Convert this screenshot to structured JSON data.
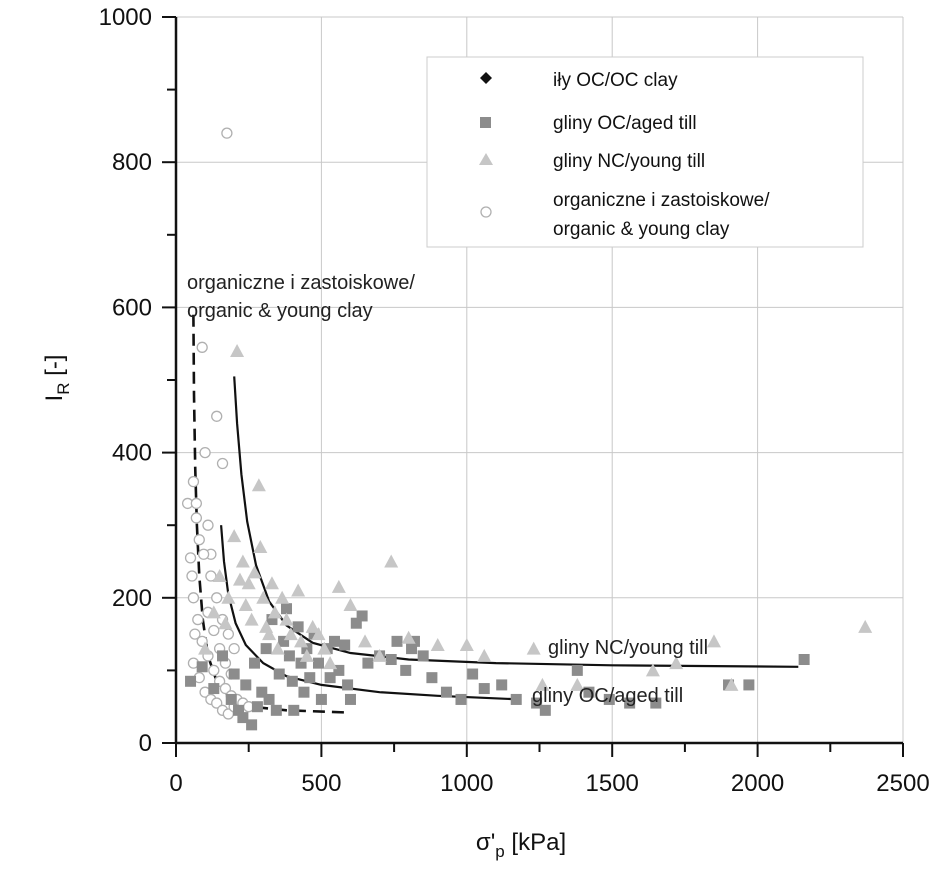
{
  "chart_data": {
    "type": "scatter",
    "xlabel": "σ'",
    "xlabel_sub": "p",
    "xlabel_unit": " [kPa]",
    "ylabel": "I",
    "ylabel_sub": "R",
    "ylabel_unit": " [-]",
    "xlim": [
      0,
      2500
    ],
    "ylim": [
      0,
      1000
    ],
    "xticks": [
      0,
      500,
      1000,
      1500,
      2000,
      2500
    ],
    "yticks": [
      0,
      200,
      400,
      600,
      800,
      1000
    ],
    "x_minor_step": 250,
    "y_minor_step": 100,
    "grid": true,
    "legend_position": "top-right",
    "colors": {
      "axis": "#111111",
      "grid": "#c8c8c8",
      "square": "#8c8c8c",
      "triangle": "#c6c6c6",
      "circle_stroke": "#b0b0b0",
      "curve": "#111111"
    },
    "legend": [
      {
        "marker": "diamond",
        "label": "iły OC/OC clay"
      },
      {
        "marker": "square",
        "label": "gliny OC/aged till"
      },
      {
        "marker": "triangle",
        "label": "gliny NC/young till"
      },
      {
        "marker": "circle",
        "label": "organiczne i zastoiskowe/",
        "label2": "organic & young clay"
      }
    ],
    "annotations": [
      {
        "text": "organiczne i zastoiskowe/",
        "text2": "organic & young clay"
      },
      {
        "text": "gliny NC/young till"
      },
      {
        "text": "gliny OC/aged till"
      }
    ],
    "series": [
      {
        "name": "gliny OC/aged till",
        "marker": "square",
        "points": [
          [
            50,
            85
          ],
          [
            90,
            105
          ],
          [
            130,
            75
          ],
          [
            160,
            120
          ],
          [
            190,
            60
          ],
          [
            200,
            95
          ],
          [
            215,
            45
          ],
          [
            230,
            35
          ],
          [
            240,
            80
          ],
          [
            260,
            25
          ],
          [
            270,
            110
          ],
          [
            280,
            50
          ],
          [
            295,
            70
          ],
          [
            310,
            130
          ],
          [
            320,
            60
          ],
          [
            330,
            170
          ],
          [
            345,
            45
          ],
          [
            355,
            95
          ],
          [
            370,
            140
          ],
          [
            380,
            185
          ],
          [
            390,
            120
          ],
          [
            400,
            85
          ],
          [
            405,
            45
          ],
          [
            420,
            160
          ],
          [
            430,
            110
          ],
          [
            440,
            70
          ],
          [
            450,
            130
          ],
          [
            460,
            90
          ],
          [
            475,
            150
          ],
          [
            490,
            110
          ],
          [
            500,
            60
          ],
          [
            520,
            130
          ],
          [
            530,
            90
          ],
          [
            545,
            140
          ],
          [
            560,
            100
          ],
          [
            580,
            135
          ],
          [
            590,
            80
          ],
          [
            600,
            60
          ],
          [
            620,
            165
          ],
          [
            640,
            175
          ],
          [
            660,
            110
          ],
          [
            700,
            120
          ],
          [
            740,
            115
          ],
          [
            760,
            140
          ],
          [
            790,
            100
          ],
          [
            810,
            130
          ],
          [
            820,
            140
          ],
          [
            850,
            120
          ],
          [
            880,
            90
          ],
          [
            930,
            70
          ],
          [
            980,
            60
          ],
          [
            1020,
            95
          ],
          [
            1060,
            75
          ],
          [
            1120,
            80
          ],
          [
            1170,
            60
          ],
          [
            1240,
            55
          ],
          [
            1270,
            45
          ],
          [
            1380,
            100
          ],
          [
            1420,
            70
          ],
          [
            1490,
            60
          ],
          [
            1560,
            55
          ],
          [
            1650,
            55
          ],
          [
            1900,
            80
          ],
          [
            1970,
            80
          ],
          [
            2160,
            115
          ]
        ]
      },
      {
        "name": "gliny NC/young till",
        "marker": "triangle",
        "points": [
          [
            100,
            130
          ],
          [
            130,
            180
          ],
          [
            150,
            230
          ],
          [
            170,
            165
          ],
          [
            180,
            200
          ],
          [
            200,
            285
          ],
          [
            210,
            540
          ],
          [
            220,
            225
          ],
          [
            230,
            250
          ],
          [
            240,
            190
          ],
          [
            250,
            220
          ],
          [
            260,
            170
          ],
          [
            270,
            235
          ],
          [
            285,
            355
          ],
          [
            290,
            270
          ],
          [
            300,
            200
          ],
          [
            310,
            160
          ],
          [
            320,
            150
          ],
          [
            330,
            220
          ],
          [
            340,
            180
          ],
          [
            350,
            130
          ],
          [
            365,
            200
          ],
          [
            380,
            170
          ],
          [
            395,
            150
          ],
          [
            420,
            210
          ],
          [
            430,
            140
          ],
          [
            450,
            120
          ],
          [
            470,
            160
          ],
          [
            490,
            150
          ],
          [
            510,
            130
          ],
          [
            530,
            110
          ],
          [
            560,
            215
          ],
          [
            600,
            190
          ],
          [
            650,
            140
          ],
          [
            700,
            120
          ],
          [
            740,
            250
          ],
          [
            800,
            145
          ],
          [
            900,
            135
          ],
          [
            1000,
            135
          ],
          [
            1060,
            120
          ],
          [
            1230,
            130
          ],
          [
            1260,
            80
          ],
          [
            1380,
            80
          ],
          [
            1640,
            100
          ],
          [
            1720,
            110
          ],
          [
            1850,
            140
          ],
          [
            1910,
            80
          ],
          [
            2370,
            160
          ]
        ]
      },
      {
        "name": "organiczne i zastoiskowe/ organic & young clay",
        "marker": "circle",
        "points": [
          [
            40,
            330
          ],
          [
            50,
            255
          ],
          [
            55,
            230
          ],
          [
            60,
            360
          ],
          [
            65,
            150
          ],
          [
            70,
            310
          ],
          [
            80,
            280
          ],
          [
            90,
            545
          ],
          [
            100,
            400
          ],
          [
            110,
            300
          ],
          [
            120,
            260
          ],
          [
            140,
            450
          ],
          [
            160,
            385
          ],
          [
            175,
            840
          ],
          [
            60,
            110
          ],
          [
            80,
            90
          ],
          [
            100,
            70
          ],
          [
            120,
            60
          ],
          [
            140,
            55
          ],
          [
            160,
            45
          ],
          [
            180,
            40
          ],
          [
            200,
            50
          ],
          [
            60,
            200
          ],
          [
            75,
            170
          ],
          [
            90,
            140
          ],
          [
            110,
            120
          ],
          [
            130,
            100
          ],
          [
            150,
            85
          ],
          [
            170,
            75
          ],
          [
            190,
            65
          ],
          [
            210,
            60
          ],
          [
            230,
            55
          ],
          [
            250,
            50
          ],
          [
            110,
            180
          ],
          [
            130,
            155
          ],
          [
            150,
            130
          ],
          [
            170,
            110
          ],
          [
            190,
            95
          ],
          [
            70,
            330
          ],
          [
            95,
            260
          ],
          [
            120,
            230
          ],
          [
            140,
            200
          ],
          [
            160,
            170
          ],
          [
            180,
            150
          ],
          [
            200,
            130
          ]
        ]
      },
      {
        "name": "iły OC/OC clay",
        "marker": "diamond",
        "points": []
      }
    ],
    "curves": [
      {
        "name": "organic & young clay trend",
        "style": "dashed",
        "points": [
          [
            60,
            590
          ],
          [
            62,
            480
          ],
          [
            66,
            380
          ],
          [
            72,
            300
          ],
          [
            80,
            230
          ],
          [
            92,
            170
          ],
          [
            110,
            120
          ],
          [
            140,
            85
          ],
          [
            190,
            60
          ],
          [
            260,
            50
          ],
          [
            380,
            45
          ],
          [
            590,
            42
          ]
        ]
      },
      {
        "name": "gliny NC/young till trend",
        "style": "solid",
        "points": [
          [
            200,
            505
          ],
          [
            210,
            440
          ],
          [
            225,
            370
          ],
          [
            245,
            305
          ],
          [
            275,
            245
          ],
          [
            320,
            195
          ],
          [
            380,
            162
          ],
          [
            470,
            138
          ],
          [
            600,
            124
          ],
          [
            800,
            115
          ],
          [
            1100,
            110
          ],
          [
            1500,
            107
          ],
          [
            2140,
            105
          ]
        ]
      },
      {
        "name": "gliny OC/aged till trend",
        "style": "solid",
        "points": [
          [
            155,
            300
          ],
          [
            165,
            250
          ],
          [
            180,
            205
          ],
          [
            205,
            165
          ],
          [
            240,
            135
          ],
          [
            300,
            110
          ],
          [
            380,
            92
          ],
          [
            500,
            80
          ],
          [
            700,
            70
          ],
          [
            900,
            65
          ],
          [
            1180,
            60
          ]
        ]
      }
    ]
  }
}
